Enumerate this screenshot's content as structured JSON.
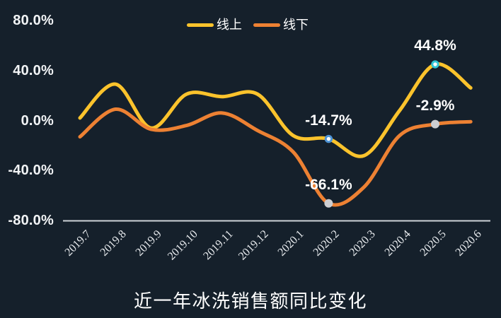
{
  "chart_data": {
    "type": "line",
    "title": "近一年冰洗销售额同比变化",
    "xlabel": "",
    "ylabel": "",
    "categories": [
      "2019.7",
      "2019.8",
      "2019.9",
      "2019.10",
      "2019.11",
      "2019.12",
      "2020.1",
      "2020.2",
      "2020.3",
      "2020.4",
      "2020.5",
      "2020.6"
    ],
    "series": [
      {
        "name": "线上",
        "color": "#fbc32c",
        "values": [
          2,
          29,
          -6,
          21,
          19,
          21,
          -12,
          -14.7,
          -28,
          8,
          44.8,
          26
        ]
      },
      {
        "name": "线下",
        "color": "#ed8133",
        "values": [
          -13,
          9,
          -7,
          -4,
          6,
          -8,
          -25,
          -66.1,
          -53,
          -12,
          -2.9,
          -1
        ]
      }
    ],
    "ylim": [
      -80,
      80
    ],
    "yticks": [
      {
        "value": 80,
        "label": "80.0%"
      },
      {
        "value": 40,
        "label": "40.0%"
      },
      {
        "value": 0,
        "label": "0.0%"
      },
      {
        "value": -40,
        "label": "-40.0%"
      },
      {
        "value": -80,
        "label": "-80.0%"
      }
    ],
    "grid": false,
    "legend_position": "top-center",
    "line_smooth": true,
    "annotations": [
      {
        "series": 0,
        "index": 7,
        "label": "-14.7%",
        "marker": "ring",
        "marker_color": "#4e94d6"
      },
      {
        "series": 0,
        "index": 10,
        "label": "44.8%",
        "marker": "ring",
        "marker_color": "#31c6d6"
      },
      {
        "series": 1,
        "index": 7,
        "label": "-66.1%",
        "marker": "dot",
        "marker_color": "#cdced1"
      },
      {
        "series": 1,
        "index": 10,
        "label": "-2.9%",
        "marker": "dot",
        "marker_color": "#cdced1"
      }
    ]
  },
  "colors": {
    "background": "#15202b",
    "axis_line": "#cdd2d7",
    "y_tick_text": "#f2f4f6",
    "x_tick_text": "#e8ebee",
    "data_label_text": "#ffffff"
  }
}
